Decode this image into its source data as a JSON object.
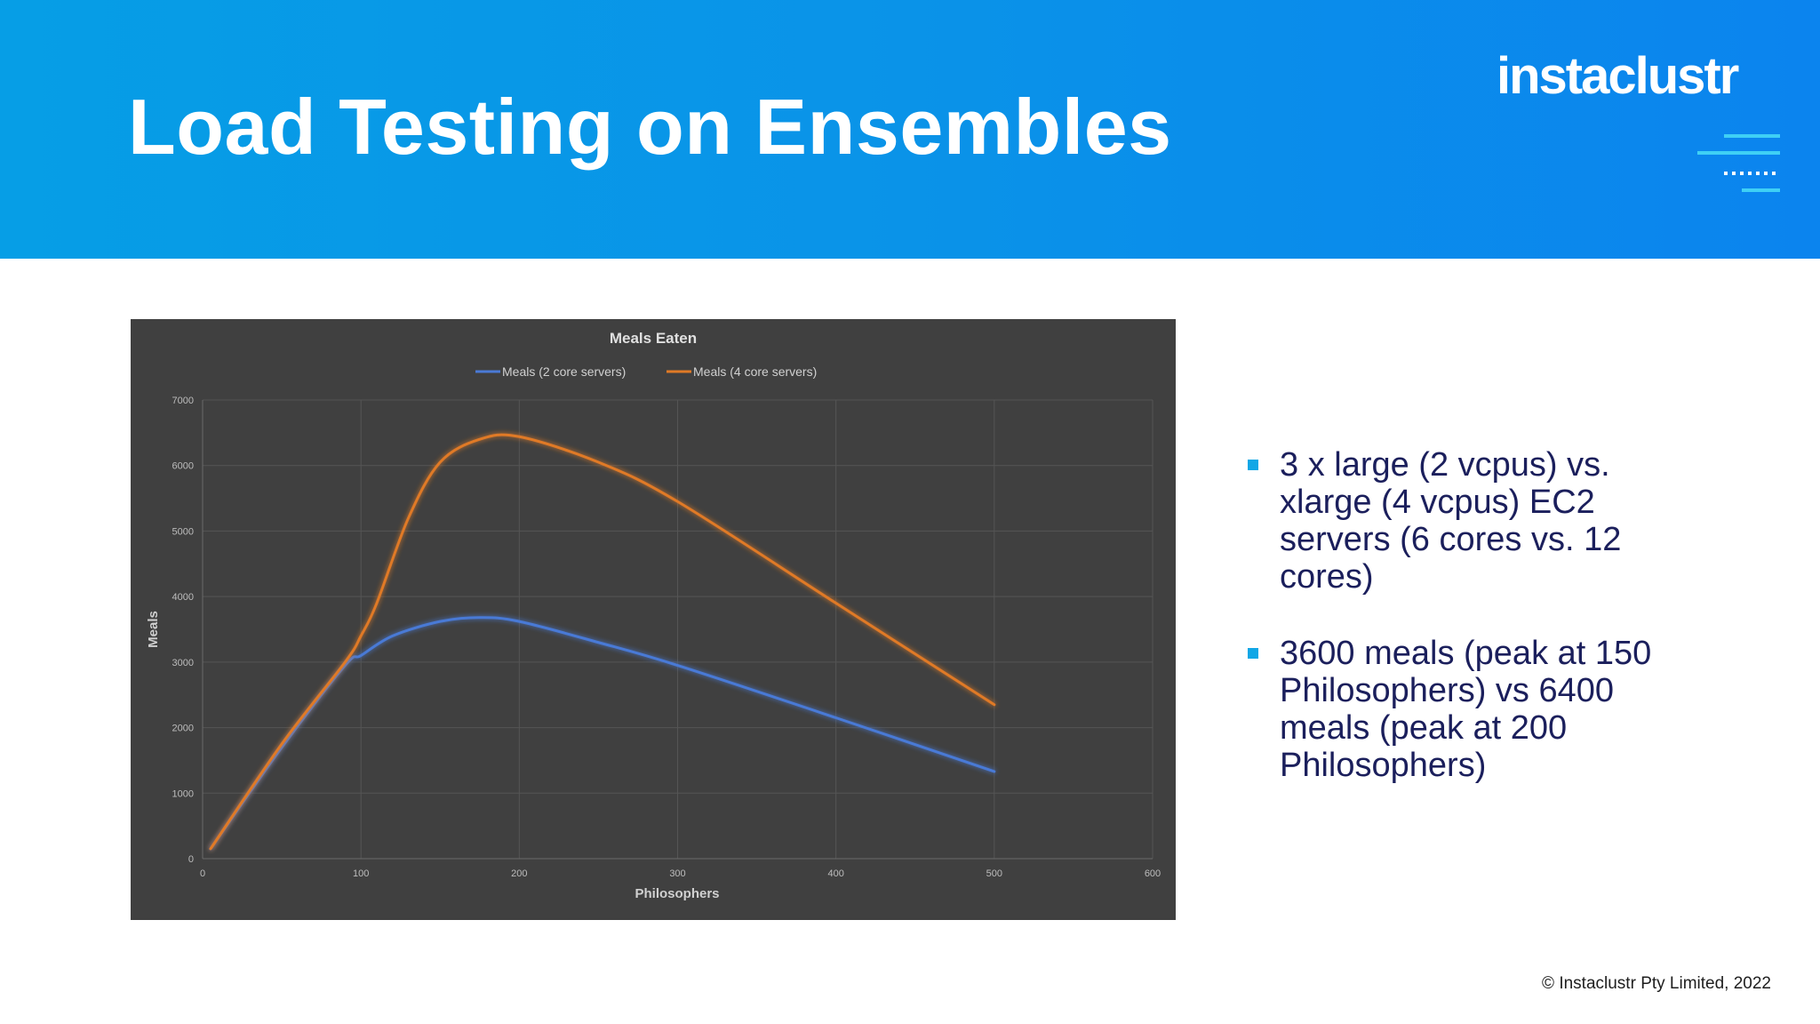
{
  "slide": {
    "title": "Load Testing on Ensembles",
    "logo_text": "instaclustr",
    "copyright": "© Instaclustr Pty Limited, 2022",
    "bullets": [
      "3 x large (2 vcpus) vs. xlarge (4 vcpus) EC2 servers (6 cores vs. 12 cores)",
      "3600 meals (peak at 150 Philosophers) vs 6400 meals (peak at 200 Philosophers)"
    ]
  },
  "colors": {
    "header_start": "#069ee6",
    "header_end": "#0b84ee",
    "chart_bg": "#404040",
    "series_2core": "#4a7ad6",
    "series_4core": "#e07a26",
    "bullet_text": "#1b1f5c",
    "bullet_marker": "#12a7e6"
  },
  "chart_data": {
    "type": "line",
    "title": "Meals Eaten",
    "xlabel": "Philosophers",
    "ylabel": "Meals",
    "xlim": [
      0,
      600
    ],
    "ylim": [
      0,
      7000
    ],
    "xticks": [
      "0",
      "100",
      "200",
      "300",
      "400",
      "500",
      "600"
    ],
    "yticks": [
      "0",
      "1000",
      "2000",
      "3000",
      "4000",
      "5000",
      "6000",
      "7000"
    ],
    "grid": true,
    "legend_position": "top",
    "series": [
      {
        "name": "Meals (2 core servers)",
        "x": [
          5,
          50,
          90,
          100,
          120,
          150,
          175,
          200,
          250,
          300,
          400,
          500
        ],
        "y": [
          150,
          1700,
          2950,
          3100,
          3400,
          3620,
          3680,
          3620,
          3300,
          2950,
          2150,
          1330
        ]
      },
      {
        "name": "Meals (4 core servers)",
        "x": [
          5,
          50,
          90,
          100,
          110,
          130,
          150,
          175,
          200,
          250,
          300,
          400,
          500
        ],
        "y": [
          150,
          1750,
          3000,
          3400,
          3900,
          5200,
          6050,
          6400,
          6440,
          6050,
          5450,
          3900,
          2350
        ]
      }
    ]
  }
}
